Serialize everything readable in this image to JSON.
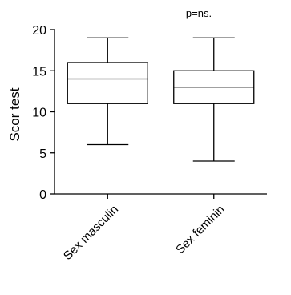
{
  "chart_data": {
    "type": "box",
    "title": "",
    "annotation": "p=ns.",
    "ylabel": "Scor test",
    "xlabel": "",
    "ylim": [
      0,
      20
    ],
    "yticks": [
      0,
      5,
      10,
      15,
      20
    ],
    "grid": false,
    "categories": [
      "Sex masculin",
      "Sex feminin"
    ],
    "boxes": [
      {
        "category": "Sex masculin",
        "min": 6,
        "q1": 11,
        "median": 14,
        "q3": 16,
        "max": 19
      },
      {
        "category": "Sex feminin",
        "min": 4,
        "q1": 11,
        "median": 13,
        "q3": 15,
        "max": 19
      }
    ]
  }
}
